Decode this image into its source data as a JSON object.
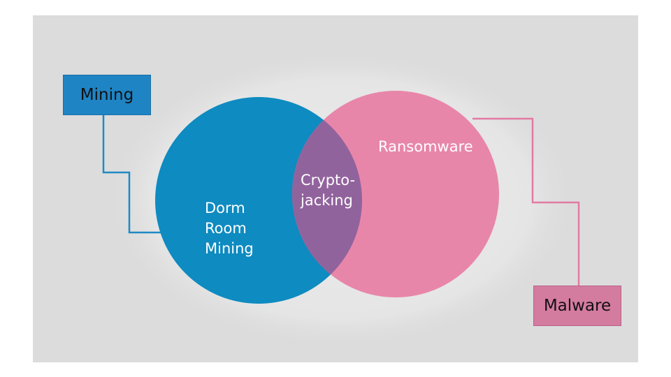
{
  "colors": {
    "background_panel": "#dcdcdc",
    "mining": "#0e8bc0",
    "mining_box": "#1f84c4",
    "ransomware": "#e886aa",
    "malware_box": "#d47ba0",
    "overlap": "#91639d",
    "text_light": "#ffffff",
    "text_dark": "#111111"
  },
  "boxes": {
    "mining": "Mining",
    "malware": "Malware"
  },
  "regions": {
    "left_only": [
      "Dorm",
      "Room",
      "Mining"
    ],
    "overlap": [
      "Crypto-",
      "jacking"
    ],
    "right_only": "Ransomware"
  }
}
